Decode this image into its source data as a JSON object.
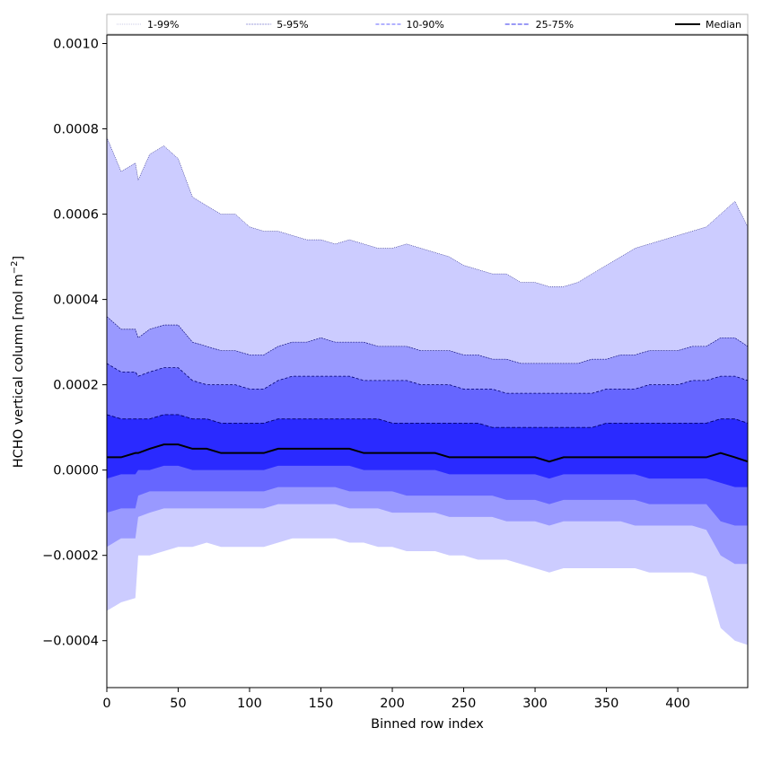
{
  "chart_data": {
    "type": "area",
    "title": "",
    "xlabel": "Binned row index",
    "ylabel_main": "HCHO vertical column [mol m",
    "ylabel_sup": "−2",
    "ylabel_close": "]",
    "xlim": [
      0,
      449
    ],
    "ylim": [
      -0.00051,
      0.00102
    ],
    "x_ticks": [
      0,
      50,
      100,
      150,
      200,
      250,
      300,
      350,
      400
    ],
    "x_tick_labels": [
      "0",
      "50",
      "100",
      "150",
      "200",
      "250",
      "300",
      "350",
      "400"
    ],
    "y_ticks": [
      -0.0004,
      -0.0002,
      0.0,
      0.0002,
      0.0004,
      0.0006,
      0.0008,
      0.001
    ],
    "y_tick_labels": [
      "−0.0004",
      "−0.0002",
      "0.0000",
      "0.0002",
      "0.0004",
      "0.0006",
      "0.0008",
      "0.0010"
    ],
    "legend": {
      "position": "top",
      "entries": [
        "1-99%",
        "5-95%",
        "10-90%",
        "25-75%",
        "Median"
      ]
    },
    "colors": {
      "band_1_99": "#ccccff",
      "band_5_95": "#9999ff",
      "band_10_90": "#6666ff",
      "band_25_75": "#2a2aff",
      "median": "#000000",
      "edge_line": "#00006e"
    },
    "x": [
      0,
      10,
      20,
      22,
      30,
      40,
      50,
      60,
      70,
      80,
      90,
      100,
      110,
      120,
      130,
      140,
      150,
      160,
      170,
      180,
      190,
      200,
      210,
      220,
      230,
      240,
      250,
      260,
      270,
      280,
      290,
      300,
      310,
      320,
      330,
      340,
      350,
      360,
      370,
      380,
      390,
      400,
      410,
      420,
      430,
      440,
      449
    ],
    "series": [
      {
        "name": "1-99%",
        "low": [
          -0.00033,
          -0.00031,
          -0.0003,
          -0.0002,
          -0.0002,
          -0.00019,
          -0.00018,
          -0.00018,
          -0.00017,
          -0.00018,
          -0.00018,
          -0.00018,
          -0.00018,
          -0.00017,
          -0.00016,
          -0.00016,
          -0.00016,
          -0.00016,
          -0.00017,
          -0.00017,
          -0.00018,
          -0.00018,
          -0.00019,
          -0.00019,
          -0.00019,
          -0.0002,
          -0.0002,
          -0.00021,
          -0.00021,
          -0.00021,
          -0.00022,
          -0.00023,
          -0.00024,
          -0.00023,
          -0.00023,
          -0.00023,
          -0.00023,
          -0.00023,
          -0.00023,
          -0.00024,
          -0.00024,
          -0.00024,
          -0.00024,
          -0.00025,
          -0.00037,
          -0.0004,
          -0.00041
        ],
        "high": [
          0.00078,
          0.0007,
          0.00072,
          0.00068,
          0.00074,
          0.00076,
          0.00073,
          0.00064,
          0.00062,
          0.0006,
          0.0006,
          0.00057,
          0.00056,
          0.00056,
          0.00055,
          0.00054,
          0.00054,
          0.00053,
          0.00054,
          0.00053,
          0.00052,
          0.00052,
          0.00053,
          0.00052,
          0.00051,
          0.0005,
          0.00048,
          0.00047,
          0.00046,
          0.00046,
          0.00044,
          0.00044,
          0.00043,
          0.00043,
          0.00044,
          0.00046,
          0.00048,
          0.0005,
          0.00052,
          0.00053,
          0.00054,
          0.00055,
          0.00056,
          0.00057,
          0.0006,
          0.00063,
          0.00057
        ]
      },
      {
        "name": "5-95%",
        "low": [
          -0.00018,
          -0.00016,
          -0.00016,
          -0.00011,
          -0.0001,
          -9e-05,
          -9e-05,
          -9e-05,
          -9e-05,
          -9e-05,
          -9e-05,
          -9e-05,
          -9e-05,
          -8e-05,
          -8e-05,
          -8e-05,
          -8e-05,
          -8e-05,
          -9e-05,
          -9e-05,
          -9e-05,
          -0.0001,
          -0.0001,
          -0.0001,
          -0.0001,
          -0.00011,
          -0.00011,
          -0.00011,
          -0.00011,
          -0.00012,
          -0.00012,
          -0.00012,
          -0.00013,
          -0.00012,
          -0.00012,
          -0.00012,
          -0.00012,
          -0.00012,
          -0.00013,
          -0.00013,
          -0.00013,
          -0.00013,
          -0.00013,
          -0.00014,
          -0.0002,
          -0.00022,
          -0.00022
        ],
        "high": [
          0.00036,
          0.00033,
          0.00033,
          0.00031,
          0.00033,
          0.00034,
          0.00034,
          0.0003,
          0.00029,
          0.00028,
          0.00028,
          0.00027,
          0.00027,
          0.00029,
          0.0003,
          0.0003,
          0.00031,
          0.0003,
          0.0003,
          0.0003,
          0.00029,
          0.00029,
          0.00029,
          0.00028,
          0.00028,
          0.00028,
          0.00027,
          0.00027,
          0.00026,
          0.00026,
          0.00025,
          0.00025,
          0.00025,
          0.00025,
          0.00025,
          0.00026,
          0.00026,
          0.00027,
          0.00027,
          0.00028,
          0.00028,
          0.00028,
          0.00029,
          0.00029,
          0.00031,
          0.00031,
          0.00029
        ]
      },
      {
        "name": "10-90%",
        "low": [
          -0.0001,
          -9e-05,
          -9e-05,
          -6e-05,
          -5e-05,
          -5e-05,
          -5e-05,
          -5e-05,
          -5e-05,
          -5e-05,
          -5e-05,
          -5e-05,
          -5e-05,
          -4e-05,
          -4e-05,
          -4e-05,
          -4e-05,
          -4e-05,
          -5e-05,
          -5e-05,
          -5e-05,
          -5e-05,
          -6e-05,
          -6e-05,
          -6e-05,
          -6e-05,
          -6e-05,
          -6e-05,
          -6e-05,
          -7e-05,
          -7e-05,
          -7e-05,
          -8e-05,
          -7e-05,
          -7e-05,
          -7e-05,
          -7e-05,
          -7e-05,
          -7e-05,
          -8e-05,
          -8e-05,
          -8e-05,
          -8e-05,
          -8e-05,
          -0.00012,
          -0.00013,
          -0.00013
        ],
        "high": [
          0.00025,
          0.00023,
          0.00023,
          0.00022,
          0.00023,
          0.00024,
          0.00024,
          0.00021,
          0.0002,
          0.0002,
          0.0002,
          0.00019,
          0.00019,
          0.00021,
          0.00022,
          0.00022,
          0.00022,
          0.00022,
          0.00022,
          0.00021,
          0.00021,
          0.00021,
          0.00021,
          0.0002,
          0.0002,
          0.0002,
          0.00019,
          0.00019,
          0.00019,
          0.00018,
          0.00018,
          0.00018,
          0.00018,
          0.00018,
          0.00018,
          0.00018,
          0.00019,
          0.00019,
          0.00019,
          0.0002,
          0.0002,
          0.0002,
          0.00021,
          0.00021,
          0.00022,
          0.00022,
          0.00021
        ]
      },
      {
        "name": "25-75%",
        "low": [
          -2e-05,
          -1e-05,
          -1e-05,
          0.0,
          0.0,
          1e-05,
          1e-05,
          0.0,
          0.0,
          0.0,
          0.0,
          0.0,
          0.0,
          1e-05,
          1e-05,
          1e-05,
          1e-05,
          1e-05,
          1e-05,
          0.0,
          0.0,
          0.0,
          0.0,
          0.0,
          0.0,
          -1e-05,
          -1e-05,
          -1e-05,
          -1e-05,
          -1e-05,
          -1e-05,
          -1e-05,
          -2e-05,
          -1e-05,
          -1e-05,
          -1e-05,
          -1e-05,
          -1e-05,
          -1e-05,
          -2e-05,
          -2e-05,
          -2e-05,
          -2e-05,
          -2e-05,
          -3e-05,
          -4e-05,
          -4e-05
        ],
        "high": [
          0.00013,
          0.00012,
          0.00012,
          0.00012,
          0.00012,
          0.00013,
          0.00013,
          0.00012,
          0.00012,
          0.00011,
          0.00011,
          0.00011,
          0.00011,
          0.00012,
          0.00012,
          0.00012,
          0.00012,
          0.00012,
          0.00012,
          0.00012,
          0.00012,
          0.00011,
          0.00011,
          0.00011,
          0.00011,
          0.00011,
          0.00011,
          0.00011,
          0.0001,
          0.0001,
          0.0001,
          0.0001,
          0.0001,
          0.0001,
          0.0001,
          0.0001,
          0.00011,
          0.00011,
          0.00011,
          0.00011,
          0.00011,
          0.00011,
          0.00011,
          0.00011,
          0.00012,
          0.00012,
          0.00011
        ]
      },
      {
        "name": "Median",
        "values": [
          3e-05,
          3e-05,
          4e-05,
          4e-05,
          5e-05,
          6e-05,
          6e-05,
          5e-05,
          5e-05,
          4e-05,
          4e-05,
          4e-05,
          4e-05,
          5e-05,
          5e-05,
          5e-05,
          5e-05,
          5e-05,
          5e-05,
          4e-05,
          4e-05,
          4e-05,
          4e-05,
          4e-05,
          4e-05,
          3e-05,
          3e-05,
          3e-05,
          3e-05,
          3e-05,
          3e-05,
          3e-05,
          2e-05,
          3e-05,
          3e-05,
          3e-05,
          3e-05,
          3e-05,
          3e-05,
          3e-05,
          3e-05,
          3e-05,
          3e-05,
          3e-05,
          4e-05,
          3e-05,
          2e-05
        ]
      }
    ]
  }
}
